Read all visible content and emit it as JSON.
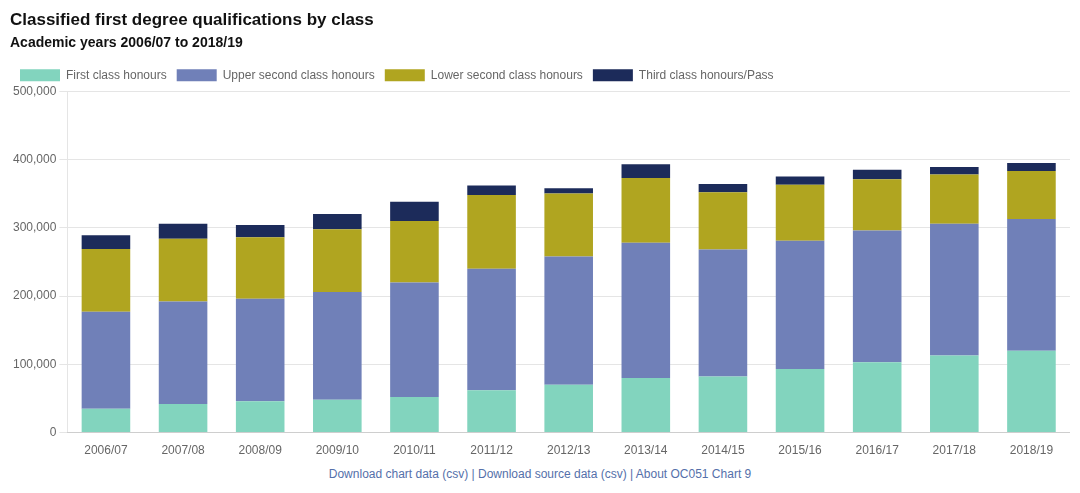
{
  "chart_data": {
    "type": "bar",
    "stacked": true,
    "title": "Classified first degree qualifications by class",
    "subtitle": "Academic years 2006/07 to 2018/19",
    "annotations": [
      "Download chart data (csv) | Download source data (csv) | About OC051 Chart 9"
    ],
    "categories": [
      "2006/07",
      "2007/08",
      "2008/09",
      "2009/10",
      "2010/11",
      "2011/12",
      "2012/13",
      "2013/14",
      "2014/15",
      "2015/16",
      "2016/17",
      "2017/18",
      "2018/19"
    ],
    "series": [
      {
        "name": "First class honours",
        "color": "#82d4be",
        "values": [
          35000,
          42000,
          46000,
          48000,
          52000,
          62000,
          70000,
          80000,
          82000,
          93000,
          103000,
          113000,
          120000
        ]
      },
      {
        "name": "Upper second class honours",
        "color": "#7080b8",
        "values": [
          142000,
          150000,
          150000,
          158000,
          168000,
          178000,
          188000,
          198000,
          186000,
          188000,
          193000,
          193000,
          193000
        ]
      },
      {
        "name": "Lower second class honours",
        "color": "#b0a520",
        "values": [
          92000,
          92000,
          90000,
          92000,
          90000,
          108000,
          92000,
          95000,
          84000,
          82000,
          75000,
          72000,
          70000
        ]
      },
      {
        "name": "Third class honours/Pass",
        "color": "#1c2b5a",
        "values": [
          20000,
          22000,
          18000,
          22000,
          28000,
          14000,
          8000,
          20000,
          12000,
          12000,
          14000,
          11000,
          12000
        ]
      }
    ],
    "ylim": [
      0,
      500000
    ],
    "yticks": [
      0,
      {
        "value": 100000,
        "label": "100,000"
      },
      {
        "value": 200000,
        "label": "200,000"
      },
      {
        "value": 300000,
        "label": "300,000"
      },
      {
        "value": 400000,
        "label": "400,000"
      },
      {
        "value": 500000,
        "label": "500,000"
      }
    ],
    "grid": true,
    "legend": "upper left"
  }
}
